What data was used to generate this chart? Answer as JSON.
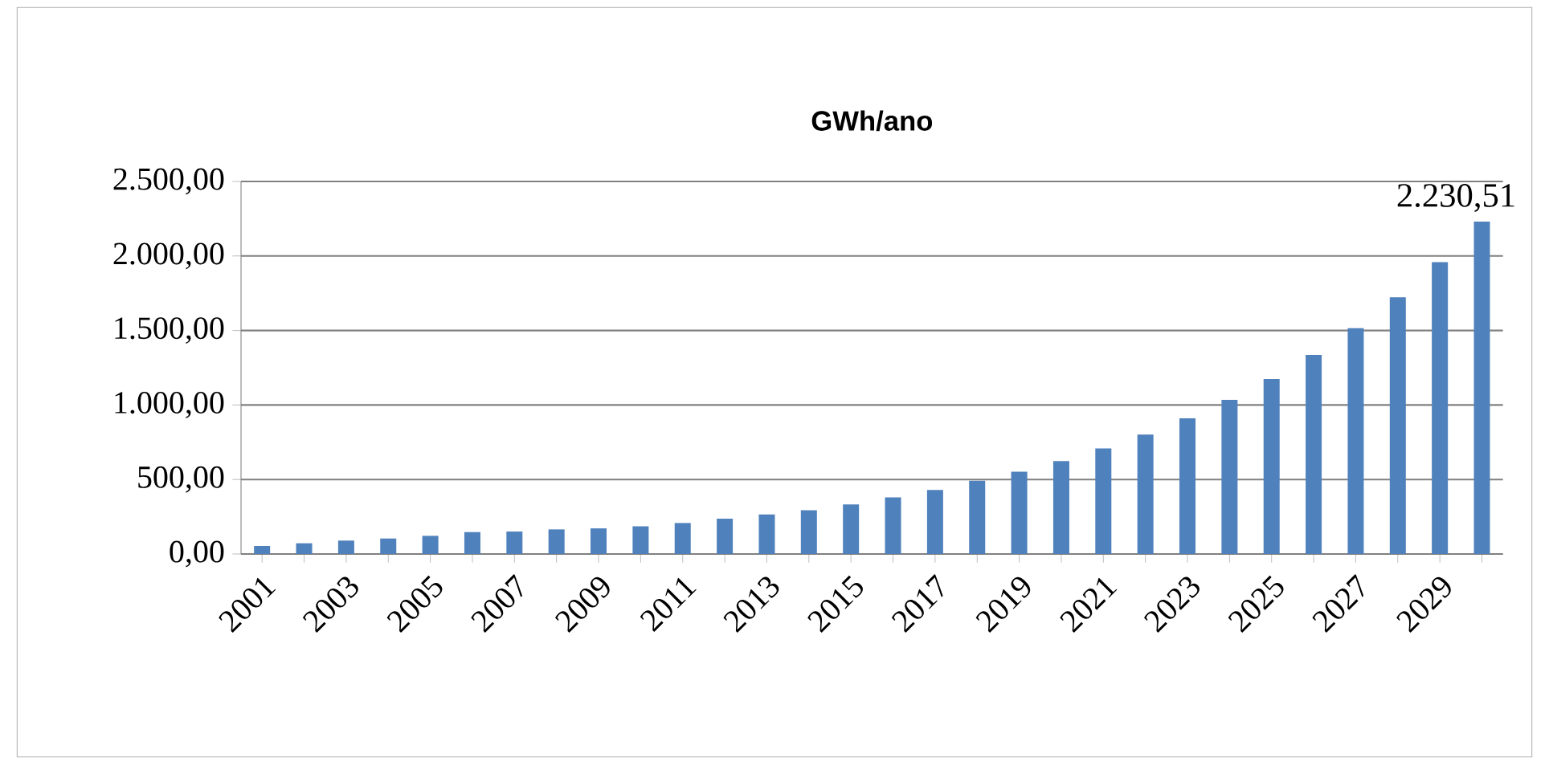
{
  "chart_data": {
    "type": "bar",
    "title": "GWh/ano",
    "categories": [
      "2001",
      null,
      "2003",
      null,
      "2005",
      null,
      "2007",
      null,
      "2009",
      null,
      "2011",
      null,
      "2013",
      null,
      "2015",
      null,
      "2017",
      null,
      "2019",
      null,
      "2021",
      null,
      "2023",
      null,
      "2025",
      null,
      "2027",
      null,
      "2029",
      null
    ],
    "values": [
      54,
      72,
      90,
      104,
      122,
      147,
      151,
      165,
      172,
      186,
      208,
      237,
      265,
      294,
      333,
      380,
      430,
      491,
      552,
      623,
      709,
      802,
      910,
      1035,
      1175,
      1336,
      1515,
      1723,
      1959,
      2230.51
    ],
    "value_labels": [
      null,
      null,
      null,
      null,
      null,
      null,
      null,
      null,
      null,
      null,
      null,
      null,
      null,
      null,
      null,
      null,
      null,
      null,
      null,
      null,
      null,
      null,
      null,
      null,
      null,
      null,
      null,
      null,
      null,
      "2.230,51"
    ],
    "color": "#4f81bd",
    "ylim": [
      0,
      2500
    ],
    "yticks": [
      {
        "value": 0,
        "label": "0,00"
      },
      {
        "value": 500,
        "label": "500,00"
      },
      {
        "value": 1000,
        "label": "1.000,00"
      },
      {
        "value": 1500,
        "label": "1.500,00"
      },
      {
        "value": 2000,
        "label": "2.000,00"
      },
      {
        "value": 2500,
        "label": "2.500,00"
      }
    ],
    "grid": "y"
  }
}
